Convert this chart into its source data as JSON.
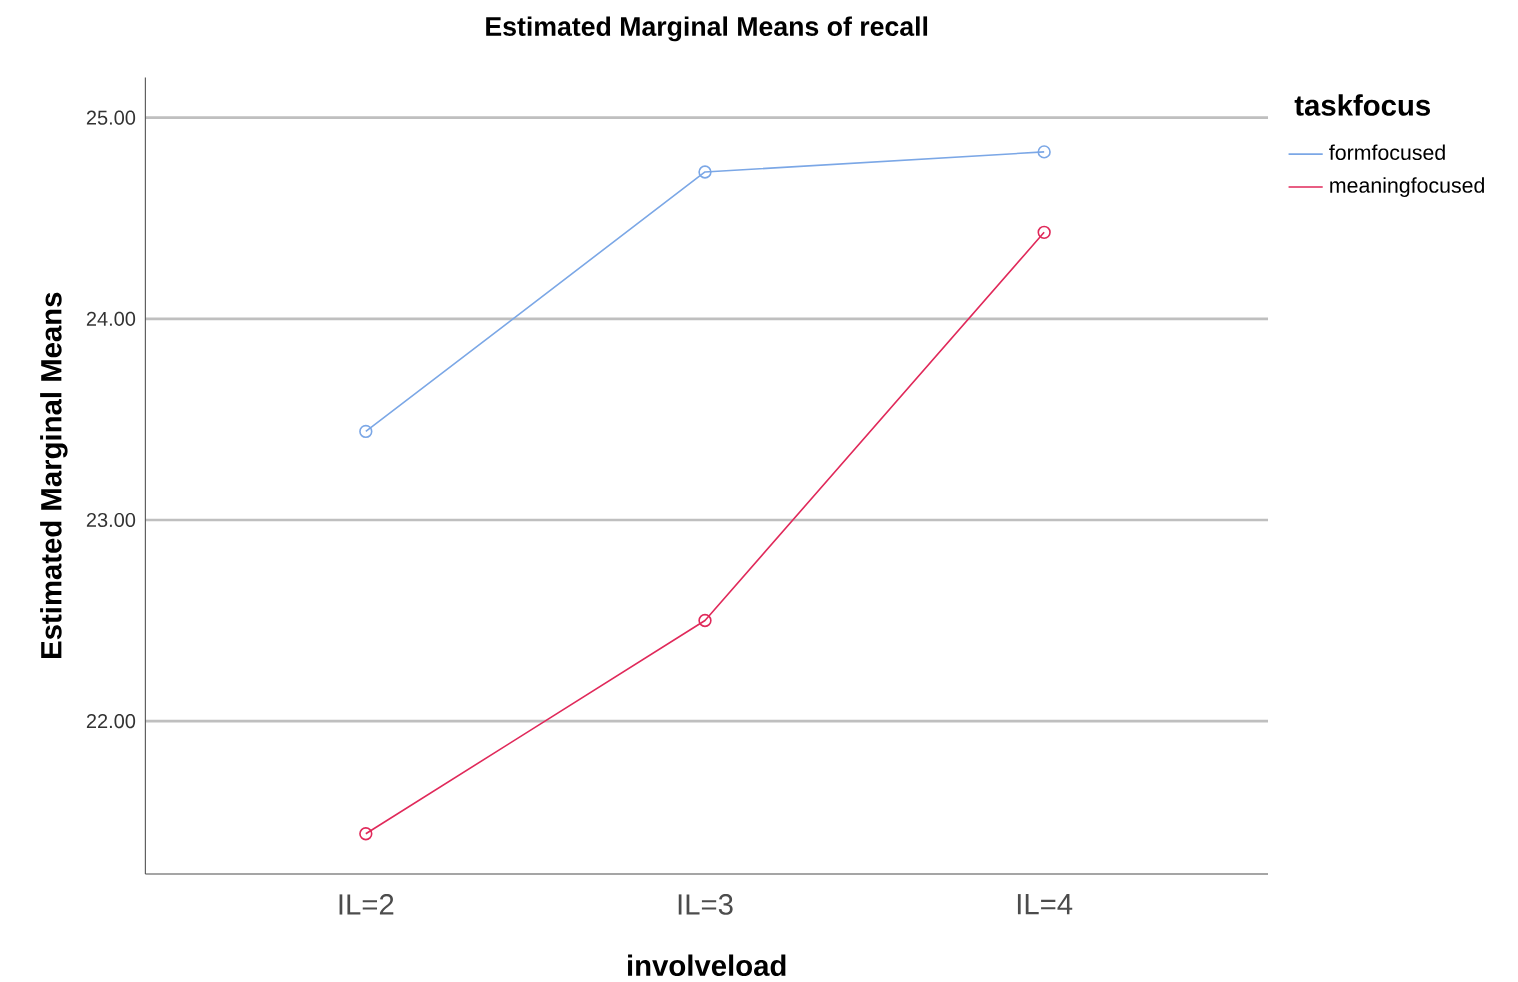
{
  "chart_data": {
    "type": "line",
    "title": "Estimated Marginal Means of recall",
    "xlabel": "involveload",
    "ylabel": "Estimated Marginal Means",
    "legend_title": "taskfocus",
    "categories": [
      "IL=2",
      "IL=3",
      "IL=4"
    ],
    "series": [
      {
        "name": "formfocused",
        "color": "#7ba7e6",
        "values": [
          23.44,
          24.73,
          24.83
        ]
      },
      {
        "name": "meaningfocused",
        "color": "#e0295a",
        "values": [
          21.44,
          22.5,
          24.43
        ]
      }
    ],
    "ylim": [
      21.24,
      25.2
    ],
    "yticks": [
      {
        "value": 22,
        "label": "22.00"
      },
      {
        "value": 23,
        "label": "23.00"
      },
      {
        "value": 24,
        "label": "24.00"
      },
      {
        "value": 25,
        "label": "25.00"
      }
    ],
    "grid": "y",
    "legend": "right",
    "marker": "circle",
    "line_style": "solid"
  }
}
